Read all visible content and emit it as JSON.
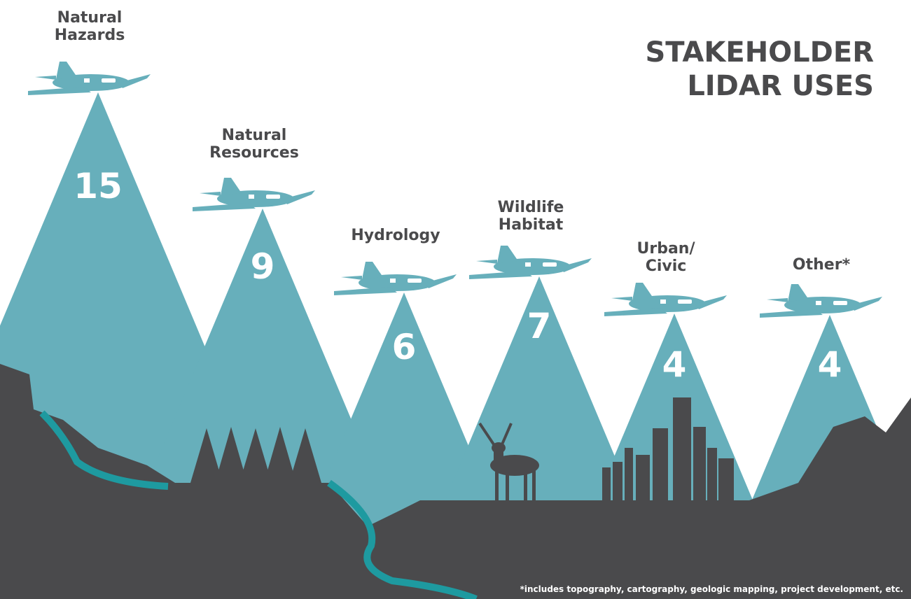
{
  "title_lines": [
    "STAKEHOLDER",
    "LIDAR USES"
  ],
  "items": [
    {
      "label_lines": [
        "Natural",
        "Hazards"
      ],
      "value": 15
    },
    {
      "label_lines": [
        "Natural",
        "Resources"
      ],
      "value": 9
    },
    {
      "label_lines": [
        "Hydrology"
      ],
      "value": 6
    },
    {
      "label_lines": [
        "Wildlife",
        "Habitat"
      ],
      "value": 7
    },
    {
      "label_lines": [
        "Urban/",
        "Civic"
      ],
      "value": 4
    },
    {
      "label_lines": [
        "Other*"
      ],
      "value": 4
    }
  ],
  "footnote": "*includes topography, cartography, geologic mapping, project development, etc."
}
